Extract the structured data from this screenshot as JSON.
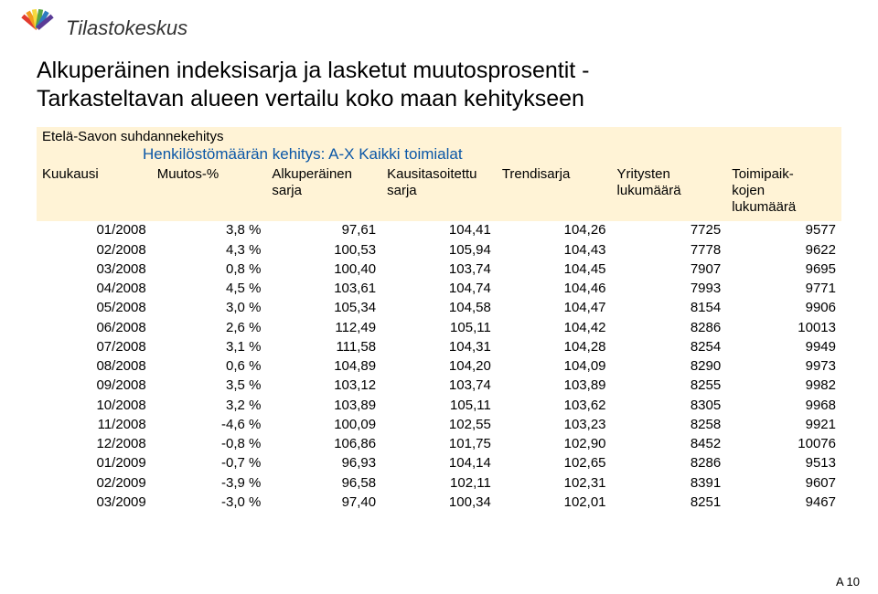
{
  "brand": {
    "name": "Tilastokeskus",
    "logo_colors": [
      "#e23b2e",
      "#f29c1f",
      "#f7d93f",
      "#5aa644",
      "#2e7bbf",
      "#5a3b96"
    ]
  },
  "title_line1": "Alkuperäinen indeksisarja ja lasketut muutosprosentit -",
  "title_line2": "Tarkasteltavan alueen vertailu koko maan kehitykseen",
  "subtitle": "Etelä-Savon suhdannekehitys",
  "series_title": "Henkilöstömäärän kehitys: A-X Kaikki toimialat",
  "columns": [
    {
      "label": "Kuukausi",
      "width": "11%"
    },
    {
      "label": "Muutos-%",
      "width": "12%"
    },
    {
      "label": "Alkuperäinen\nsarja",
      "width": "16%"
    },
    {
      "label": "Kausitasoitettu\nsarja",
      "width": "18%"
    },
    {
      "label": "Trendisarja",
      "width": "14%"
    },
    {
      "label": "Yritysten\nlukumäärä",
      "width": "13%"
    },
    {
      "label": "Toimipaik-\nkojen\nlukumäärä",
      "width": "16%"
    }
  ],
  "rows": [
    [
      "01/2008",
      "3,8 %",
      "97,61",
      "104,41",
      "104,26",
      "7725",
      "9577"
    ],
    [
      "02/2008",
      "4,3 %",
      "100,53",
      "105,94",
      "104,43",
      "7778",
      "9622"
    ],
    [
      "03/2008",
      "0,8 %",
      "100,40",
      "103,74",
      "104,45",
      "7907",
      "9695"
    ],
    [
      "04/2008",
      "4,5 %",
      "103,61",
      "104,74",
      "104,46",
      "7993",
      "9771"
    ],
    [
      "05/2008",
      "3,0 %",
      "105,34",
      "104,58",
      "104,47",
      "8154",
      "9906"
    ],
    [
      "06/2008",
      "2,6 %",
      "112,49",
      "105,11",
      "104,42",
      "8286",
      "10013"
    ],
    [
      "07/2008",
      "3,1 %",
      "111,58",
      "104,31",
      "104,28",
      "8254",
      "9949"
    ],
    [
      "08/2008",
      "0,6 %",
      "104,89",
      "104,20",
      "104,09",
      "8290",
      "9973"
    ],
    [
      "09/2008",
      "3,5 %",
      "103,12",
      "103,74",
      "103,89",
      "8255",
      "9982"
    ],
    [
      "10/2008",
      "3,2 %",
      "103,89",
      "105,11",
      "103,62",
      "8305",
      "9968"
    ],
    [
      "11/2008",
      "-4,6 %",
      "100,09",
      "102,55",
      "103,23",
      "8258",
      "9921"
    ],
    [
      "12/2008",
      "-0,8 %",
      "106,86",
      "101,75",
      "102,90",
      "8452",
      "10076"
    ],
    [
      "01/2009",
      "-0,7 %",
      "96,93",
      "104,14",
      "102,65",
      "8286",
      "9513"
    ],
    [
      "02/2009",
      "-3,9 %",
      "96,58",
      "102,11",
      "102,31",
      "8391",
      "9607"
    ],
    [
      "03/2009",
      "-3,0 %",
      "97,40",
      "100,34",
      "102,01",
      "8251",
      "9467"
    ]
  ],
  "footer": "A 10",
  "colors": {
    "header_bg": "#fff3d6",
    "series_title": "#0b57a7",
    "text": "#000000",
    "brand_text": "#333333"
  }
}
